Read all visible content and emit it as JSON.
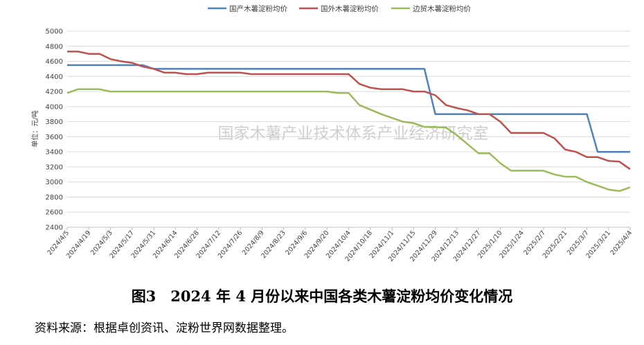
{
  "figure_caption": "图3　2024 年 4 月份以来中国各类木薯淀粉均价变化情况",
  "source_note": "资料来源：根据卓创资讯、淀粉世界网数据整理。",
  "watermark": "国家木薯产业技术体系产业经济研究室",
  "colors": {
    "grid": "#d9d9d9",
    "axis": "#bfbfbf",
    "text": "#404040",
    "watermark": "#cfcfcf"
  },
  "chart_data": {
    "type": "line",
    "ylabel": "单位：元/吨",
    "ylim": [
      2400,
      5000
    ],
    "ytick_step": 200,
    "grid": "horizontal",
    "legend_position": "top",
    "categories": [
      "2024/4/5",
      "2024/4/12",
      "2024/4/19",
      "2024/4/26",
      "2024/5/3",
      "2024/5/10",
      "2024/5/17",
      "2024/5/24",
      "2024/5/31",
      "2024/6/7",
      "2024/6/14",
      "2024/6/21",
      "2024/6/28",
      "2024/7/5",
      "2024/7/12",
      "2024/7/19",
      "2024/7/26",
      "2024/8/2",
      "2024/8/9",
      "2024/8/16",
      "2024/8/23",
      "2024/8/30",
      "2024/9/6",
      "2024/9/13",
      "2024/9/20",
      "2024/9/27",
      "2024/10/4",
      "2024/10/11",
      "2024/10/18",
      "2024/10/25",
      "2024/11/1",
      "2024/11/8",
      "2024/11/15",
      "2024/11/22",
      "2024/11/29",
      "2024/12/6",
      "2024/12/13",
      "2024/12/20",
      "2024/12/27",
      "2025/1/3",
      "2025/1/10",
      "2025/1/17",
      "2025/1/24",
      "2025/1/31",
      "2025/2/7",
      "2025/2/14",
      "2025/2/21",
      "2025/2/28",
      "2025/3/7",
      "2025/3/14",
      "2025/3/21",
      "2025/3/28",
      "2025/4/4"
    ],
    "tick_labels": [
      "2024/4/5",
      "2024/4/19",
      "2024/5/3",
      "2024/5/17",
      "2024/5/31",
      "2024/6/14",
      "2024/6/28",
      "2024/7/12",
      "2024/7/26",
      "2024/8/9",
      "2024/8/23",
      "2024/9/6",
      "2024/9/20",
      "2024/10/4",
      "2024/10/18",
      "2024/11/1",
      "2024/11/15",
      "2024/11/29",
      "2024/12/13",
      "2024/12/27",
      "2025/1/10",
      "2025/1/24",
      "2025/2/7",
      "2025/2/21",
      "2025/3/7",
      "2025/3/21",
      "2025/4/4"
    ],
    "series": [
      {
        "name": "国产木薯淀粉均价",
        "color": "#4f81bd",
        "values": [
          4550,
          4550,
          4550,
          4550,
          4550,
          4550,
          4550,
          4550,
          4500,
          4500,
          4500,
          4500,
          4500,
          4500,
          4500,
          4500,
          4500,
          4500,
          4500,
          4500,
          4500,
          4500,
          4500,
          4500,
          4500,
          4500,
          4500,
          4500,
          4500,
          4500,
          4500,
          4500,
          4500,
          4500,
          3900,
          3900,
          3900,
          3900,
          3900,
          3900,
          3900,
          3900,
          3900,
          3900,
          3900,
          3900,
          3900,
          3900,
          3900,
          3400,
          3400,
          3400,
          3400
        ]
      },
      {
        "name": "国外木薯淀粉均价",
        "color": "#c0504d",
        "values": [
          4730,
          4730,
          4700,
          4700,
          4630,
          4600,
          4580,
          4530,
          4500,
          4450,
          4450,
          4430,
          4430,
          4450,
          4450,
          4450,
          4450,
          4430,
          4430,
          4430,
          4430,
          4430,
          4430,
          4430,
          4430,
          4430,
          4430,
          4300,
          4250,
          4230,
          4230,
          4230,
          4200,
          4200,
          4150,
          4020,
          3980,
          3950,
          3900,
          3900,
          3800,
          3650,
          3650,
          3650,
          3650,
          3580,
          3430,
          3400,
          3330,
          3330,
          3280,
          3270,
          3170
        ]
      },
      {
        "name": "边贸木薯淀粉均价",
        "color": "#9bbb59",
        "values": [
          4180,
          4230,
          4230,
          4230,
          4200,
          4200,
          4200,
          4200,
          4200,
          4200,
          4200,
          4200,
          4200,
          4200,
          4200,
          4200,
          4200,
          4200,
          4200,
          4200,
          4200,
          4200,
          4200,
          4200,
          4200,
          4180,
          4180,
          4020,
          3960,
          3900,
          3850,
          3800,
          3780,
          3730,
          3730,
          3720,
          3620,
          3500,
          3380,
          3380,
          3250,
          3150,
          3150,
          3150,
          3150,
          3100,
          3070,
          3070,
          3000,
          2950,
          2900,
          2880,
          2930
        ]
      }
    ]
  }
}
